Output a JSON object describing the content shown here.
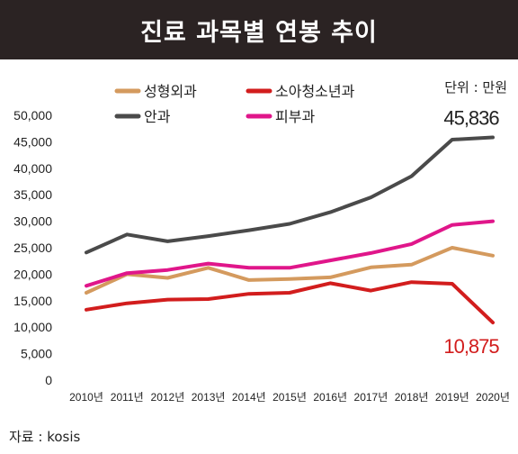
{
  "header": {
    "title": "진료 과목별 연봉 추이"
  },
  "unit_label": "단위 : 만원",
  "source_label": "자료 : kosis",
  "colors": {
    "title_bg": "#2b2323",
    "성형외과": "#d49a5e",
    "소아청소년과": "#d21d1d",
    "안과": "#4a4a4a",
    "피부과": "#e0168a"
  },
  "chart_data": {
    "type": "line",
    "categories": [
      "2010년",
      "2011년",
      "2012년",
      "2013년",
      "2014년",
      "2015년",
      "2016년",
      "2017년",
      "2018년",
      "2019년",
      "2020년"
    ],
    "ylim": [
      0,
      50000
    ],
    "yticks": [
      0,
      5000,
      10000,
      15000,
      20000,
      25000,
      30000,
      35000,
      40000,
      45000,
      50000
    ],
    "ytick_labels": [
      "0",
      "5,000",
      "10,000",
      "15,000",
      "20,000",
      "25,000",
      "30,000",
      "35,000",
      "40,000",
      "45,000",
      "50,000"
    ],
    "grid": false,
    "legend_position": "top-left",
    "series": [
      {
        "name": "성형외과",
        "color": "#d49a5e",
        "values": [
          16500,
          20000,
          19300,
          21200,
          18900,
          19100,
          19400,
          21300,
          21800,
          25000,
          23500
        ]
      },
      {
        "name": "소아청소년과",
        "color": "#d21d1d",
        "values": [
          13300,
          14500,
          15200,
          15300,
          16300,
          16500,
          18300,
          16900,
          18500,
          18200,
          10875
        ]
      },
      {
        "name": "안과",
        "color": "#4a4a4a",
        "values": [
          24100,
          27500,
          26200,
          27200,
          28300,
          29500,
          31700,
          34500,
          38500,
          45400,
          45836
        ]
      },
      {
        "name": "피부과",
        "color": "#e0168a",
        "values": [
          17800,
          20200,
          20800,
          22000,
          21200,
          21200,
          22600,
          24000,
          25700,
          29300,
          30000
        ]
      }
    ],
    "annotations": [
      {
        "text": "45,836",
        "series": "안과",
        "category": "2020년",
        "color": "#222222"
      },
      {
        "text": "10,875",
        "series": "소아청소년과",
        "category": "2020년",
        "color": "#d21d1d"
      }
    ]
  }
}
